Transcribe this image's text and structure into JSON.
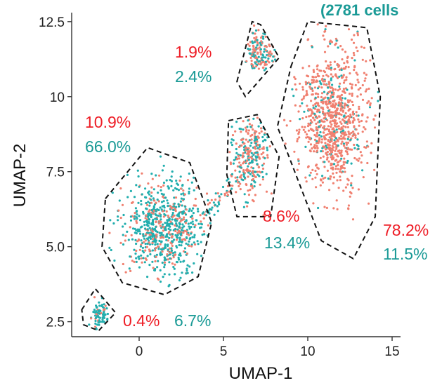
{
  "chart_data": {
    "type": "scatter",
    "title": "",
    "xlabel": "UMAP-1",
    "ylabel": "UMAP-2",
    "xlim": [
      -4,
      15.5
    ],
    "ylim": [
      2.0,
      12.8
    ],
    "x_ticks": [
      {
        "value": 0,
        "label": "0"
      },
      {
        "value": 5,
        "label": "5"
      },
      {
        "value": 10,
        "label": "10"
      },
      {
        "value": 15,
        "label": "15"
      }
    ],
    "y_ticks": [
      {
        "value": 2.5,
        "label": "2.5"
      },
      {
        "value": 5.0,
        "label": "5.0"
      },
      {
        "value": 7.5,
        "label": "7.5"
      },
      {
        "value": 10,
        "label": "10"
      },
      {
        "value": 12.5,
        "label": "12.5"
      }
    ],
    "annotation_top": "(2781 cells",
    "colors": {
      "red_series": "#f08070",
      "teal_series": "#22aeae",
      "red_text": "#ee1c25",
      "teal_text": "#1a9a96",
      "axis": "#333333",
      "outline": "#111111"
    },
    "clusters": [
      {
        "id": "cluster-1",
        "center": [
          1.5,
          5.6
        ],
        "spread": [
          1.6,
          1.1
        ],
        "red_pct": "10.9%",
        "teal_pct": "66.0%",
        "red_share": 0.3,
        "teal_share": 0.7,
        "outline": [
          [
            -2.0,
            6.6
          ],
          [
            0.5,
            8.3
          ],
          [
            3.0,
            7.8
          ],
          [
            4.3,
            5.8
          ],
          [
            3.5,
            4.0
          ],
          [
            1.5,
            3.4
          ],
          [
            -1.0,
            3.8
          ],
          [
            -2.2,
            5.0
          ]
        ]
      },
      {
        "id": "cluster-2",
        "center": [
          -2.3,
          2.75
        ],
        "spread": [
          0.35,
          0.3
        ],
        "red_pct": "0.4%",
        "teal_pct": "6.7%",
        "red_share": 0.3,
        "teal_share": 0.7,
        "outline": [
          [
            -3.4,
            2.9
          ],
          [
            -2.6,
            3.6
          ],
          [
            -1.4,
            2.8
          ],
          [
            -2.4,
            2.2
          ],
          [
            -3.3,
            2.4
          ]
        ]
      },
      {
        "id": "cluster-3",
        "center": [
          6.5,
          8.0
        ],
        "spread": [
          0.75,
          0.9
        ],
        "red_pct": "8.6%",
        "teal_pct": "13.4%",
        "red_share": 0.6,
        "teal_share": 0.4,
        "outline": [
          [
            5.3,
            9.2
          ],
          [
            7.0,
            9.4
          ],
          [
            8.3,
            8.0
          ],
          [
            7.8,
            6.0
          ],
          [
            5.8,
            6.0
          ],
          [
            5.2,
            7.4
          ]
        ]
      },
      {
        "id": "cluster-4",
        "center": [
          7.2,
          11.5
        ],
        "spread": [
          0.7,
          0.5
        ],
        "red_pct": "1.9%",
        "teal_pct": "2.4%",
        "red_share": 0.55,
        "teal_share": 0.45,
        "outline": [
          [
            5.8,
            10.5
          ],
          [
            6.7,
            12.5
          ],
          [
            7.2,
            12.4
          ],
          [
            8.3,
            11.3
          ],
          [
            6.3,
            10.0
          ]
        ]
      },
      {
        "id": "cluster-5",
        "center": [
          11.5,
          9.2
        ],
        "spread": [
          1.4,
          1.6
        ],
        "red_pct": "78.2%",
        "teal_pct": "11.5%",
        "red_share": 0.88,
        "teal_share": 0.12,
        "outline": [
          [
            9.0,
            11.0
          ],
          [
            10.0,
            12.5
          ],
          [
            13.5,
            12.3
          ],
          [
            14.3,
            10.0
          ],
          [
            14.0,
            6.0
          ],
          [
            12.7,
            4.6
          ],
          [
            10.8,
            5.2
          ],
          [
            8.2,
            9.0
          ]
        ]
      }
    ]
  }
}
